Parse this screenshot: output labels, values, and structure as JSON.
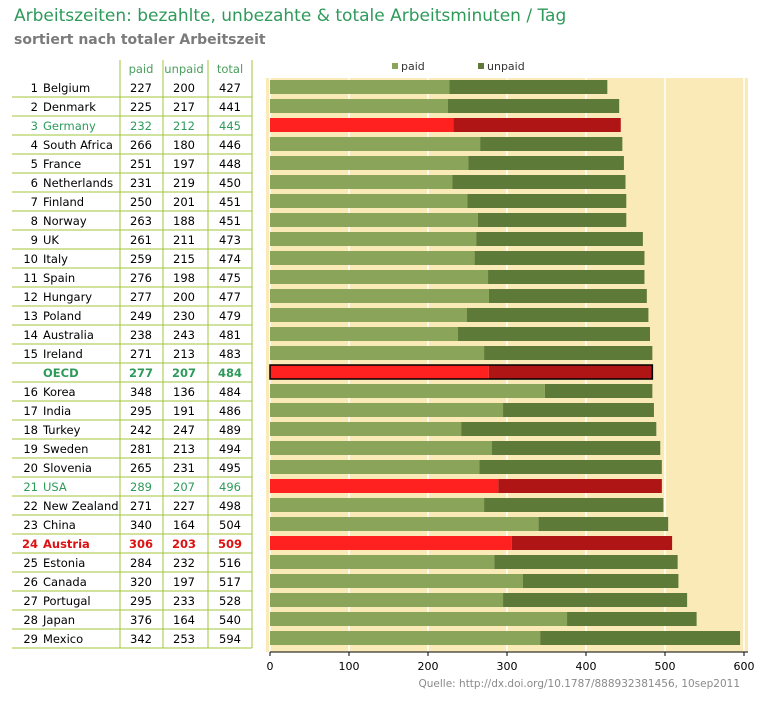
{
  "header": {
    "title": "Arbeitszeiten: bezahlte, unbezahte & totale Arbeitsminuten / Tag",
    "subtitle": "sortiert nach totaler Arbeitszeit"
  },
  "source": "Quelle: http://dx.doi.org/10.1787/888932381456, 10sep2011",
  "table_headers": {
    "paid": "paid",
    "unpaid": "unpaid",
    "total": "total"
  },
  "colors": {
    "paid": "#8aa55a",
    "unpaid": "#5e7a38",
    "paid_highlight": "#ff2020",
    "unpaid_highlight": "#b01515",
    "plot_bg": "#faeab7",
    "highlight_text_green": "#2e9a5a",
    "highlight_text_red": "#dd1111",
    "line": "#a0c43a"
  },
  "chart_data": {
    "type": "bar",
    "orientation": "horizontal",
    "stacked": true,
    "title": "Arbeitszeiten: bezahlte, unbezahte & totale Arbeitsminuten / Tag",
    "subtitle": "sortiert nach totaler Arbeitszeit",
    "xlim": [
      0,
      600
    ],
    "xticks": [
      "0",
      "100",
      "200",
      "300",
      "400",
      "500",
      "600"
    ],
    "grid": true,
    "legend": {
      "position": "top",
      "entries": [
        "paid",
        "unpaid"
      ]
    },
    "series": [
      {
        "name": "paid"
      },
      {
        "name": "unpaid"
      }
    ],
    "rows": [
      {
        "rank": "1",
        "country": "Belgium",
        "paid": 227,
        "unpaid": 200,
        "total": 427
      },
      {
        "rank": "2",
        "country": "Denmark",
        "paid": 225,
        "unpaid": 217,
        "total": 441
      },
      {
        "rank": "3",
        "country": "Germany",
        "paid": 232,
        "unpaid": 212,
        "total": 445,
        "highlight": "green"
      },
      {
        "rank": "4",
        "country": "South Africa",
        "paid": 266,
        "unpaid": 180,
        "total": 446
      },
      {
        "rank": "5",
        "country": "France",
        "paid": 251,
        "unpaid": 197,
        "total": 448
      },
      {
        "rank": "6",
        "country": "Netherlands",
        "paid": 231,
        "unpaid": 219,
        "total": 450
      },
      {
        "rank": "7",
        "country": "Finland",
        "paid": 250,
        "unpaid": 201,
        "total": 451
      },
      {
        "rank": "8",
        "country": "Norway",
        "paid": 263,
        "unpaid": 188,
        "total": 451
      },
      {
        "rank": "9",
        "country": "UK",
        "paid": 261,
        "unpaid": 211,
        "total": 473
      },
      {
        "rank": "10",
        "country": "Italy",
        "paid": 259,
        "unpaid": 215,
        "total": 474
      },
      {
        "rank": "11",
        "country": "Spain",
        "paid": 276,
        "unpaid": 198,
        "total": 475
      },
      {
        "rank": "12",
        "country": "Hungary",
        "paid": 277,
        "unpaid": 200,
        "total": 477
      },
      {
        "rank": "13",
        "country": "Poland",
        "paid": 249,
        "unpaid": 230,
        "total": 479
      },
      {
        "rank": "14",
        "country": "Australia",
        "paid": 238,
        "unpaid": 243,
        "total": 481
      },
      {
        "rank": "15",
        "country": "Ireland",
        "paid": 271,
        "unpaid": 213,
        "total": 483
      },
      {
        "rank": "",
        "country": "OECD",
        "paid": 277,
        "unpaid": 207,
        "total": 484,
        "highlight": "oecd"
      },
      {
        "rank": "16",
        "country": "Korea",
        "paid": 348,
        "unpaid": 136,
        "total": 484
      },
      {
        "rank": "17",
        "country": "India",
        "paid": 295,
        "unpaid": 191,
        "total": 486
      },
      {
        "rank": "18",
        "country": "Turkey",
        "paid": 242,
        "unpaid": 247,
        "total": 489
      },
      {
        "rank": "19",
        "country": "Sweden",
        "paid": 281,
        "unpaid": 213,
        "total": 494
      },
      {
        "rank": "20",
        "country": "Slovenia",
        "paid": 265,
        "unpaid": 231,
        "total": 495
      },
      {
        "rank": "21",
        "country": "USA",
        "paid": 289,
        "unpaid": 207,
        "total": 496,
        "highlight": "green"
      },
      {
        "rank": "22",
        "country": "New Zealand",
        "paid": 271,
        "unpaid": 227,
        "total": 498
      },
      {
        "rank": "23",
        "country": "China",
        "paid": 340,
        "unpaid": 164,
        "total": 504
      },
      {
        "rank": "24",
        "country": "Austria",
        "paid": 306,
        "unpaid": 203,
        "total": 509,
        "highlight": "red"
      },
      {
        "rank": "25",
        "country": "Estonia",
        "paid": 284,
        "unpaid": 232,
        "total": 516
      },
      {
        "rank": "26",
        "country": "Canada",
        "paid": 320,
        "unpaid": 197,
        "total": 517
      },
      {
        "rank": "27",
        "country": "Portugal",
        "paid": 295,
        "unpaid": 233,
        "total": 528
      },
      {
        "rank": "28",
        "country": "Japan",
        "paid": 376,
        "unpaid": 164,
        "total": 540
      },
      {
        "rank": "29",
        "country": "Mexico",
        "paid": 342,
        "unpaid": 253,
        "total": 594
      }
    ]
  }
}
